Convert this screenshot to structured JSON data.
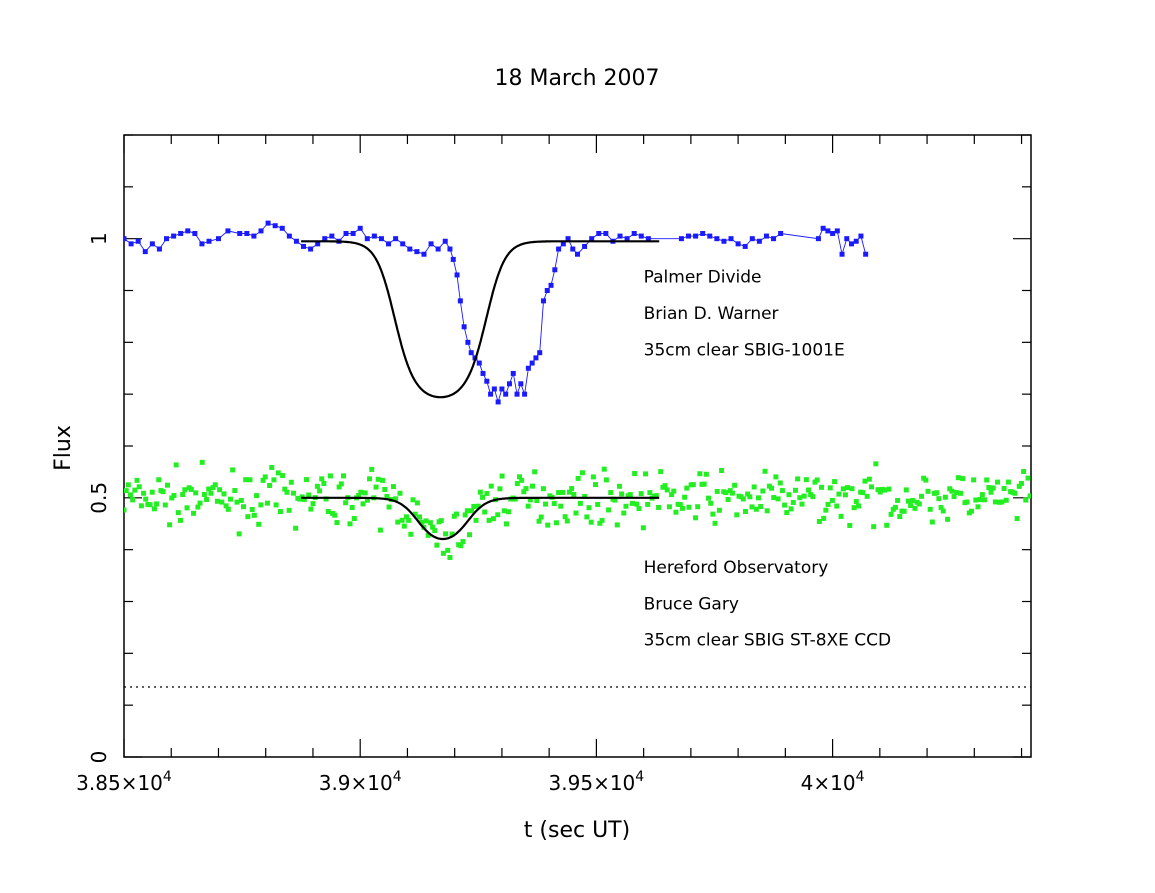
{
  "chart_data": {
    "type": "scatter",
    "title": "18 March 2007",
    "xlabel": "t (sec UT)",
    "ylabel": "Flux",
    "xlim": [
      38500,
      40420
    ],
    "ylim": [
      0,
      1.2
    ],
    "x_ticks": [
      {
        "value": 38500,
        "mantissa": "3.85",
        "exp": "4"
      },
      {
        "value": 39000,
        "mantissa": "3.9",
        "exp": "4"
      },
      {
        "value": 39500,
        "mantissa": "3.95",
        "exp": "4"
      },
      {
        "value": 40000,
        "mantissa": "4",
        "exp": "4"
      }
    ],
    "y_ticks": [
      {
        "value": 0,
        "label": "0"
      },
      {
        "value": 0.5,
        "label": "0.5"
      },
      {
        "value": 1,
        "label": "1"
      }
    ],
    "grid": false,
    "colors": {
      "series1": "#1a1aff",
      "series2": "#22ee22",
      "fit": "#000000"
    },
    "reference_line": {
      "y": 0.135,
      "style": "dotted"
    },
    "annotations": [
      {
        "text": "Palmer Divide",
        "x": 39600,
        "y": 0.915
      },
      {
        "text": "Brian D. Warner",
        "x": 39600,
        "y": 0.845
      },
      {
        "text": "35cm clear SBIG-1001E",
        "x": 39600,
        "y": 0.775
      },
      {
        "text": "Hereford Observatory",
        "x": 39600,
        "y": 0.355
      },
      {
        "text": "Bruce Gary",
        "x": 39600,
        "y": 0.285
      },
      {
        "text": "35cm clear SBIG ST-8XE CCD",
        "x": 39600,
        "y": 0.215
      }
    ],
    "series": [
      {
        "marker": "square",
        "connected": true,
        "color": "#1a1aff",
        "points": [
          [
            38500,
            1.0
          ],
          [
            38515,
            0.99
          ],
          [
            38530,
            0.995
          ],
          [
            38545,
            0.975
          ],
          [
            38560,
            0.99
          ],
          [
            38575,
            0.98
          ],
          [
            38590,
            1.0
          ],
          [
            38605,
            1.005
          ],
          [
            38620,
            1.01
          ],
          [
            38635,
            1.015
          ],
          [
            38650,
            1.01
          ],
          [
            38665,
            0.99
          ],
          [
            38680,
            0.995
          ],
          [
            38700,
            1.0
          ],
          [
            38720,
            1.015
          ],
          [
            38745,
            1.01
          ],
          [
            38760,
            1.01
          ],
          [
            38775,
            1.005
          ],
          [
            38790,
            1.015
          ],
          [
            38805,
            1.03
          ],
          [
            38820,
            1.025
          ],
          [
            38835,
            1.02
          ],
          [
            38850,
            1.005
          ],
          [
            38865,
            0.995
          ],
          [
            38880,
            0.985
          ],
          [
            38895,
            0.98
          ],
          [
            38910,
            0.99
          ],
          [
            38925,
            1.0
          ],
          [
            38940,
            1.005
          ],
          [
            38955,
            0.995
          ],
          [
            38970,
            1.01
          ],
          [
            38985,
            1.01
          ],
          [
            39000,
            1.02
          ],
          [
            39015,
            1.0
          ],
          [
            39030,
            1.005
          ],
          [
            39045,
            1.0
          ],
          [
            39060,
            0.99
          ],
          [
            39075,
            1.0
          ],
          [
            39090,
            0.99
          ],
          [
            39105,
            0.98
          ],
          [
            39120,
            0.975
          ],
          [
            39135,
            0.97
          ],
          [
            39150,
            0.99
          ],
          [
            39165,
            0.98
          ],
          [
            39180,
            0.995
          ],
          [
            39190,
            0.98
          ],
          [
            39197,
            0.96
          ],
          [
            39205,
            0.93
          ],
          [
            39212,
            0.88
          ],
          [
            39220,
            0.83
          ],
          [
            39228,
            0.8
          ],
          [
            39235,
            0.78
          ],
          [
            39243,
            0.77
          ],
          [
            39252,
            0.76
          ],
          [
            39260,
            0.74
          ],
          [
            39268,
            0.725
          ],
          [
            39276,
            0.7
          ],
          [
            39284,
            0.71
          ],
          [
            39292,
            0.685
          ],
          [
            39300,
            0.71
          ],
          [
            39308,
            0.7
          ],
          [
            39316,
            0.72
          ],
          [
            39324,
            0.74
          ],
          [
            39332,
            0.7
          ],
          [
            39340,
            0.72
          ],
          [
            39348,
            0.7
          ],
          [
            39356,
            0.75
          ],
          [
            39364,
            0.76
          ],
          [
            39372,
            0.77
          ],
          [
            39380,
            0.78
          ],
          [
            39388,
            0.88
          ],
          [
            39396,
            0.9
          ],
          [
            39404,
            0.91
          ],
          [
            39412,
            0.94
          ],
          [
            39420,
            0.98
          ],
          [
            39430,
            0.99
          ],
          [
            39440,
            1.0
          ],
          [
            39450,
            0.98
          ],
          [
            39460,
            0.97
          ],
          [
            39475,
            0.985
          ],
          [
            39490,
            1.0
          ],
          [
            39505,
            1.01
          ],
          [
            39520,
            1.01
          ],
          [
            39535,
            0.995
          ],
          [
            39550,
            1.005
          ],
          [
            39565,
            1.0
          ],
          [
            39580,
            1.01
          ],
          [
            39595,
            1.005
          ],
          [
            39610,
            1.0
          ],
          [
            39680,
            1.0
          ],
          [
            39695,
            1.005
          ],
          [
            39710,
            1.005
          ],
          [
            39725,
            1.01
          ],
          [
            39740,
            1.005
          ],
          [
            39755,
            1.0
          ],
          [
            39770,
            0.995
          ],
          [
            39785,
            1.0
          ],
          [
            39800,
            0.99
          ],
          [
            39815,
            0.985
          ],
          [
            39830,
            1.0
          ],
          [
            39845,
            0.995
          ],
          [
            39860,
            1.005
          ],
          [
            39875,
            1.0
          ],
          [
            39890,
            1.01
          ],
          [
            39970,
            1.0
          ],
          [
            39980,
            1.02
          ],
          [
            39990,
            1.015
          ],
          [
            40000,
            1.01
          ],
          [
            40010,
            1.015
          ],
          [
            40020,
            0.97
          ],
          [
            40030,
            1.0
          ],
          [
            40040,
            0.99
          ],
          [
            40050,
            0.995
          ],
          [
            40060,
            1.005
          ],
          [
            40070,
            0.97
          ]
        ]
      },
      {
        "marker": "square",
        "connected": false,
        "color": "#22ee22",
        "seed": 7,
        "noise": 0.045,
        "points": []
      }
    ],
    "fits": [
      {
        "x_range": [
          38875,
          39633
        ],
        "baseline": 0.995,
        "depth": 0.305,
        "center": 39170,
        "width": 200,
        "edge": 60,
        "color": "#000000"
      },
      {
        "x_range": [
          38875,
          39633
        ],
        "baseline": 0.5,
        "depth": 0.09,
        "center": 39175,
        "width": 110,
        "edge": 60,
        "color": "#000000"
      }
    ]
  }
}
